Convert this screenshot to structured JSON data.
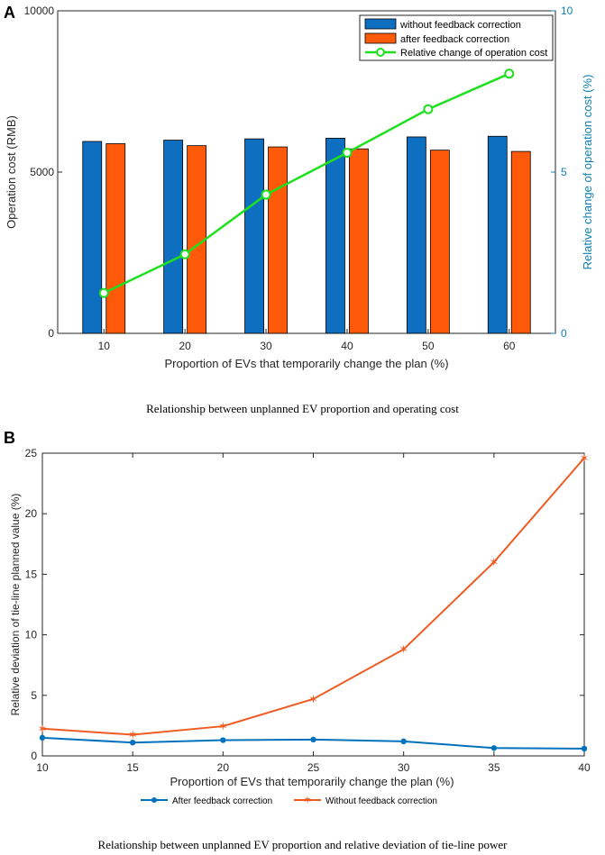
{
  "panels": [
    {
      "letter": "A",
      "caption": "Relationship between unplanned EV proportion and operating cost"
    },
    {
      "letter": "B",
      "caption": "Relationship between unplanned EV proportion and relative deviation of tie-line power"
    }
  ],
  "chart_data": [
    {
      "type": "bar",
      "categories": [
        "10",
        "20",
        "30",
        "40",
        "50",
        "60"
      ],
      "series": [
        {
          "name": "without feedback correction",
          "values": [
            5950,
            5990,
            6030,
            6050,
            6090,
            6110
          ],
          "color": "#0E6FC1"
        },
        {
          "name": "after feedback correction",
          "values": [
            5880,
            5820,
            5780,
            5720,
            5680,
            5640
          ],
          "color": "#FF5A0A"
        }
      ],
      "line_series": {
        "name": "Relative change of operation cost",
        "axis": "right",
        "values": [
          1.25,
          2.45,
          4.3,
          5.6,
          6.95,
          8.05
        ],
        "color": "#1EE01E"
      },
      "title": "",
      "xlabel": "Proportion of EVs that temporarily change the plan (%)",
      "ylabel": "Operation cost (RMB)",
      "y2label": "Relative change of operation cost (%)",
      "ylim": [
        0,
        10000
      ],
      "y2lim": [
        0,
        10
      ],
      "yticks": [
        "0",
        "5000",
        "10000"
      ],
      "y2ticks": [
        "0",
        "5",
        "10"
      ],
      "legend_position": "top-right"
    },
    {
      "type": "line",
      "x": [
        10,
        15,
        20,
        25,
        30,
        35,
        40
      ],
      "xticks": [
        "10",
        "15",
        "20",
        "25",
        "30",
        "35",
        "40"
      ],
      "series": [
        {
          "name": "After feedback correction",
          "values": [
            1.5,
            1.1,
            1.3,
            1.35,
            1.2,
            0.65,
            0.6
          ],
          "color": "#0072BD",
          "marker": "dot"
        },
        {
          "name": "Without feedback correction",
          "values": [
            2.25,
            1.75,
            2.45,
            4.7,
            8.8,
            16.0,
            24.6
          ],
          "color": "#EF5B22",
          "marker": "star"
        }
      ],
      "title": "",
      "xlabel": "Proportion of EVs that temporarily change the plan (%)",
      "ylabel": "Relative deviation of tie-line planned value (%)",
      "xlim": [
        10,
        40
      ],
      "ylim": [
        0,
        25
      ],
      "yticks": [
        "0",
        "5",
        "10",
        "15",
        "20",
        "25"
      ],
      "legend_position": "bottom-outside"
    }
  ]
}
